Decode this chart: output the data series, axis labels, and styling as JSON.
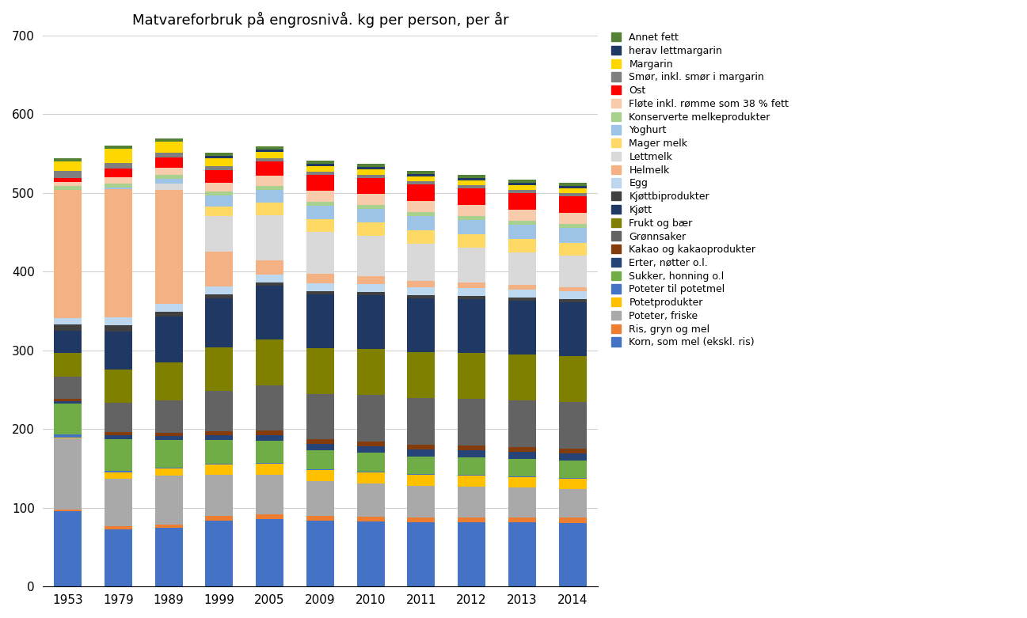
{
  "title": "Matvareforbruk på engrosnivå. kg per person, per år",
  "years": [
    "1953",
    "1979",
    "1989",
    "1999",
    "2005",
    "2009",
    "2010",
    "2011",
    "2012",
    "2013",
    "2014"
  ],
  "categories": [
    "Korn, som mel (ekskl. ris)",
    "Ris, gryn og mel",
    "Poteter, friske",
    "Potetprodukter",
    "Poteter til potetmel",
    "Sukker, honning o.l",
    "Erter, nøtter o.l.",
    "Kakao og kakaoprodukter",
    "Grønnsaker",
    "Frukt og bær",
    "Kjøtt",
    "Kjøttbiprodukter",
    "Egg",
    "Helmelk",
    "Lettmelk",
    "Mager melk",
    "Yoghurt",
    "Konserverte melkeprodukter",
    "Fløte inkl. rømme som 38 % fett",
    "Ost",
    "Smør, inkl. smør i margarin",
    "Margarin",
    "herav lettmargarin",
    "Annet fett"
  ],
  "colors": {
    "Korn, som mel (ekskl. ris)": "#4472C4",
    "Ris, gryn og mel": "#ED7D31",
    "Poteter, friske": "#A9A9A9",
    "Potetprodukter": "#FFC000",
    "Poteter til potetmel": "#4472C4",
    "Sukker, honning o.l": "#70AD47",
    "Erter, nøtter o.l.": "#264478",
    "Kakao og kakaoprodukter": "#843C0C",
    "Grønnsaker": "#636363",
    "Frukt og bær": "#7F7F00",
    "Kjøtt": "#1F3864",
    "Kjøttbiprodukter": "#404040",
    "Egg": "#BDD7EE",
    "Helmelk": "#F4B183",
    "Lettmelk": "#D9D9D9",
    "Mager melk": "#FFD966",
    "Yoghurt": "#9DC3E6",
    "Konserverte melkeprodukter": "#A9D18E",
    "Fløte inkl. rømme som 38 % fett": "#F8CBAD",
    "Ost": "#FF0000",
    "Smør, inkl. smør i margarin": "#7F7F7F",
    "Margarin": "#FFD700",
    "herav lettmargarin": "#203864",
    "Annet fett": "#538135"
  },
  "data": {
    "Korn, som mel (ekskl. ris)": [
      96,
      73,
      75,
      84,
      86,
      84,
      83,
      82,
      82,
      82,
      81
    ],
    "Ris, gryn og mel": [
      2,
      4,
      4,
      6,
      6,
      6,
      6,
      6,
      6,
      6,
      7
    ],
    "Poteter, friske": [
      90,
      60,
      62,
      52,
      50,
      44,
      42,
      40,
      39,
      38,
      36
    ],
    "Potetprodukter": [
      1,
      8,
      9,
      13,
      14,
      14,
      14,
      14,
      14,
      13,
      13
    ],
    "Poteter til potetmel": [
      4,
      2,
      1,
      1,
      1,
      1,
      1,
      1,
      1,
      1,
      1
    ],
    "Sukker, honning o.l": [
      40,
      40,
      35,
      30,
      28,
      24,
      24,
      22,
      22,
      22,
      22
    ],
    "Erter, nøtter o.l.": [
      3,
      5,
      5,
      6,
      7,
      8,
      8,
      9,
      9,
      9,
      9
    ],
    "Kakao og kakaoprodukter": [
      3,
      4,
      4,
      5,
      6,
      6,
      6,
      6,
      6,
      6,
      6
    ],
    "Grønnsaker": [
      28,
      38,
      42,
      52,
      58,
      58,
      60,
      60,
      60,
      60,
      60
    ],
    "Frukt og bær": [
      30,
      42,
      48,
      55,
      58,
      58,
      58,
      58,
      58,
      58,
      58
    ],
    "Kjøtt": [
      28,
      48,
      58,
      62,
      68,
      68,
      68,
      68,
      68,
      68,
      68
    ],
    "Kjøttbiprodukter": [
      8,
      8,
      6,
      5,
      4,
      4,
      4,
      4,
      4,
      4,
      4
    ],
    "Egg": [
      8,
      10,
      10,
      10,
      10,
      10,
      10,
      10,
      10,
      10,
      10
    ],
    "Helmelk": [
      163,
      163,
      145,
      45,
      18,
      12,
      10,
      8,
      7,
      6,
      5
    ],
    "Lettmelk": [
      0,
      0,
      8,
      45,
      58,
      54,
      52,
      48,
      45,
      42,
      40
    ],
    "Mager melk": [
      0,
      0,
      0,
      12,
      16,
      16,
      17,
      17,
      17,
      17,
      17
    ],
    "Yoghurt": [
      0,
      2,
      6,
      14,
      16,
      17,
      17,
      18,
      18,
      18,
      19
    ],
    "Konserverte melkeprodukter": [
      5,
      5,
      5,
      5,
      5,
      5,
      5,
      5,
      5,
      5,
      5
    ],
    "Fløte inkl. rømme som 38 % fett": [
      5,
      8,
      9,
      11,
      13,
      14,
      14,
      14,
      14,
      14,
      14
    ],
    "Ost": [
      5,
      11,
      13,
      16,
      18,
      20,
      20,
      21,
      21,
      21,
      21
    ],
    "Smør, inkl. smør i margarin": [
      9,
      7,
      6,
      5,
      4,
      4,
      4,
      4,
      4,
      4,
      4
    ],
    "Margarin": [
      12,
      18,
      14,
      10,
      8,
      7,
      7,
      6,
      6,
      6,
      6
    ],
    "herav lettmargarin": [
      0,
      0,
      0,
      3,
      3,
      3,
      3,
      3,
      3,
      3,
      3
    ],
    "Annet fett": [
      4,
      4,
      4,
      4,
      4,
      4,
      4,
      4,
      4,
      4,
      4
    ]
  },
  "ylim": [
    0,
    700
  ],
  "yticks": [
    0,
    100,
    200,
    300,
    400,
    500,
    600,
    700
  ],
  "background_color": "#ffffff",
  "grid_color": "#d0d0d0"
}
